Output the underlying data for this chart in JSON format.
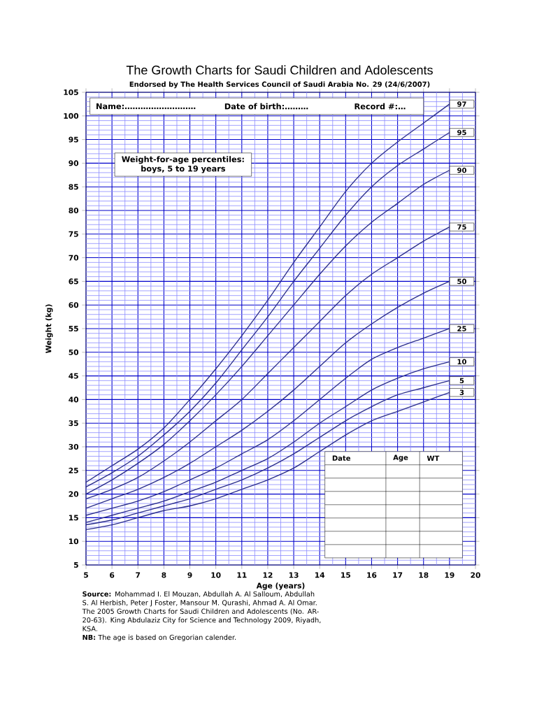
{
  "chart_data": {
    "type": "line",
    "title": "The Growth Charts for Saudi Children and Adolescents",
    "subtitle": "Endorsed by The Health Services Council of Saudi Arabia No. 29 (24/6/2007)",
    "xlabel": "Age (years)",
    "ylabel": "Weight (kg)",
    "x": [
      5,
      6,
      7,
      8,
      9,
      10,
      11,
      12,
      13,
      14,
      15,
      16,
      17,
      18,
      19
    ],
    "series": [
      {
        "name": "97",
        "color": "#2b2e8c",
        "values": [
          22.5,
          26,
          29.5,
          34,
          40,
          46.5,
          53.5,
          61,
          69,
          76.5,
          84,
          90,
          94.5,
          98.5,
          102.5
        ]
      },
      {
        "name": "95",
        "color": "#2b2e8c",
        "values": [
          21.5,
          24.5,
          28,
          32.5,
          37.5,
          43.5,
          50.5,
          57.5,
          65,
          72,
          79,
          85,
          89.5,
          93,
          96.5
        ]
      },
      {
        "name": "90",
        "color": "#2b2e8c",
        "values": [
          20,
          23,
          26.5,
          30.5,
          35.5,
          41,
          47,
          53.5,
          60,
          66.5,
          72.5,
          77.5,
          81.5,
          85.5,
          88.5
        ]
      },
      {
        "name": "75",
        "color": "#2b2e8c",
        "values": [
          19,
          21,
          23.5,
          27,
          31,
          35.5,
          40,
          45.5,
          51,
          56.5,
          62,
          66.5,
          70,
          73.5,
          76.5
        ]
      },
      {
        "name": "50",
        "color": "#2b2e8c",
        "values": [
          17,
          19,
          21,
          23.5,
          26.5,
          30,
          33.5,
          37.5,
          42,
          47,
          52,
          56,
          59.5,
          62.5,
          65
        ]
      },
      {
        "name": "25",
        "color": "#2b2e8c",
        "values": [
          15.5,
          17,
          18.5,
          20.5,
          23,
          25.5,
          28.5,
          31.5,
          35.5,
          40,
          44.5,
          48.5,
          51,
          53,
          55
        ]
      },
      {
        "name": "10",
        "color": "#2b2e8c",
        "values": [
          14,
          15.5,
          17,
          18.5,
          20.5,
          22.5,
          25,
          27.5,
          31,
          35,
          38.5,
          42,
          44.5,
          46.5,
          48
        ]
      },
      {
        "name": "5",
        "color": "#2b2e8c",
        "values": [
          13.5,
          14.5,
          16,
          17.5,
          19,
          21,
          23,
          25.5,
          28.5,
          32,
          35.5,
          38.5,
          41,
          42.5,
          44
        ]
      },
      {
        "name": "3",
        "color": "#2b2e8c",
        "values": [
          12.5,
          13.5,
          15,
          16.5,
          17.5,
          19,
          21,
          23,
          25.5,
          29,
          32.5,
          35.5,
          37.5,
          39.5,
          41.5
        ]
      }
    ],
    "xlim": [
      5,
      20
    ],
    "ylim": [
      5,
      105
    ],
    "xticks": [
      5,
      {
        "value": 5.5,
        "label": null
      },
      6,
      {
        "value": 6.5,
        "label": null
      },
      7,
      {
        "value": 7.5,
        "label": null
      },
      8,
      {
        "value": 8.5,
        "label": null
      },
      9,
      {
        "value": 9.5,
        "label": null
      },
      10,
      {
        "value": 10.5,
        "label": null
      },
      11,
      {
        "value": 11.5,
        "label": null
      },
      12,
      {
        "value": 12.5,
        "label": null
      },
      13,
      {
        "value": 13.5,
        "label": null
      },
      14,
      {
        "value": 14.5,
        "label": null
      },
      15,
      {
        "value": 15.5,
        "label": null
      },
      16,
      {
        "value": 16.5,
        "label": null
      },
      17,
      {
        "value": 17.5,
        "label": null
      },
      18,
      {
        "value": 18.5,
        "label": null
      },
      19,
      {
        "value": 19.5,
        "label": null
      },
      20
    ],
    "yticks": [
      5,
      {
        "value": 6,
        "label": null
      },
      {
        "value": 7,
        "label": null
      },
      {
        "value": 8,
        "label": null
      },
      {
        "value": 9,
        "label": null
      },
      10,
      {
        "value": 11,
        "label": null
      },
      {
        "value": 12,
        "label": null
      },
      {
        "value": 13,
        "label": null
      },
      {
        "value": 14,
        "label": null
      },
      15,
      {
        "value": 16,
        "label": null
      },
      {
        "value": 17,
        "label": null
      },
      {
        "value": 18,
        "label": null
      },
      {
        "value": 19,
        "label": null
      },
      20,
      {
        "value": 21,
        "label": null
      },
      {
        "value": 22,
        "label": null
      },
      {
        "value": 23,
        "label": null
      },
      {
        "value": 24,
        "label": null
      },
      25,
      {
        "value": 26,
        "label": null
      },
      {
        "value": 27,
        "label": null
      },
      {
        "value": 28,
        "label": null
      },
      {
        "value": 29,
        "label": null
      },
      30,
      {
        "value": 31,
        "label": null
      },
      {
        "value": 32,
        "label": null
      },
      {
        "value": 33,
        "label": null
      },
      {
        "value": 34,
        "label": null
      },
      35,
      {
        "value": 36,
        "label": null
      },
      {
        "value": 37,
        "label": null
      },
      {
        "value": 38,
        "label": null
      },
      {
        "value": 39,
        "label": null
      },
      40,
      {
        "value": 41,
        "label": null
      },
      {
        "value": 42,
        "label": null
      },
      {
        "value": 43,
        "label": null
      },
      {
        "value": 44,
        "label": null
      },
      45,
      {
        "value": 46,
        "label": null
      },
      {
        "value": 47,
        "label": null
      },
      {
        "value": 48,
        "label": null
      },
      {
        "value": 49,
        "label": null
      },
      50,
      {
        "value": 51,
        "label": null
      },
      {
        "value": 52,
        "label": null
      },
      {
        "value": 53,
        "label": null
      },
      {
        "value": 54,
        "label": null
      },
      55,
      {
        "value": 56,
        "label": null
      },
      {
        "value": 57,
        "label": null
      },
      {
        "value": 58,
        "label": null
      },
      {
        "value": 59,
        "label": null
      },
      60,
      {
        "value": 61,
        "label": null
      },
      {
        "value": 62,
        "label": null
      },
      {
        "value": 63,
        "label": null
      },
      {
        "value": 64,
        "label": null
      },
      65,
      {
        "value": 66,
        "label": null
      },
      {
        "value": 67,
        "label": null
      },
      {
        "value": 68,
        "label": null
      },
      {
        "value": 69,
        "label": null
      },
      70,
      {
        "value": 71,
        "label": null
      },
      {
        "value": 72,
        "label": null
      },
      {
        "value": 73,
        "label": null
      },
      {
        "value": 74,
        "label": null
      },
      75,
      {
        "value": 76,
        "label": null
      },
      {
        "value": 77,
        "label": null
      },
      {
        "value": 78,
        "label": null
      },
      {
        "value": 79,
        "label": null
      },
      80,
      {
        "value": 81,
        "label": null
      },
      {
        "value": 82,
        "label": null
      },
      {
        "value": 83,
        "label": null
      },
      {
        "value": 84,
        "label": null
      },
      85,
      {
        "value": 86,
        "label": null
      },
      {
        "value": 87,
        "label": null
      },
      {
        "value": 88,
        "label": null
      },
      {
        "value": 89,
        "label": null
      },
      90,
      {
        "value": 91,
        "label": null
      },
      {
        "value": 92,
        "label": null
      },
      {
        "value": 93,
        "label": null
      },
      {
        "value": 94,
        "label": null
      },
      95,
      {
        "value": 96,
        "label": null
      },
      {
        "value": 97,
        "label": null
      },
      {
        "value": 98,
        "label": null
      },
      {
        "value": 99,
        "label": null
      },
      100,
      {
        "value": 101,
        "label": null
      },
      {
        "value": 102,
        "label": null
      },
      {
        "value": 103,
        "label": null
      },
      {
        "value": 104,
        "label": null
      },
      105
    ],
    "grid": true,
    "legend": false,
    "marker": "none",
    "line_style": "solid",
    "annotations": [
      "Name:………………………",
      "Date of birth:………",
      "Record #:…",
      "Weight-for-age percentiles: boys, 5 to 19 years",
      "Date",
      "Age",
      "WT",
      "**Source:** Mohammad I. El Mouzan, Abdullah A. Al Salloum, Abdullah S. Al Herbish, Peter J Foster, Mansour M. Qurashi, Ahmad A. Al Omar. The 2005 Growth Charts for Saudi Children and Adolescents (No. AR-20-63). King Abdulaziz City for Science and Technology 2009, Riyadh, KSA.",
      "**NB:** The age is based on Gregorian calender."
    ]
  }
}
